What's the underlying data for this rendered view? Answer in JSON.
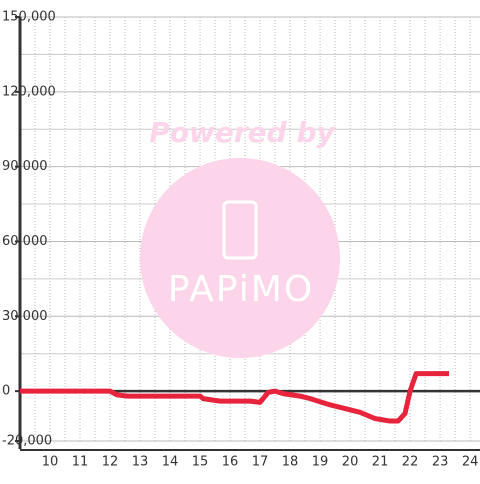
{
  "chart_data": {
    "type": "line",
    "x": [
      9,
      12,
      12.23,
      12.6,
      15,
      15.1,
      15.67,
      16.67,
      17,
      17.27,
      17.5,
      17.77,
      18.33,
      18.67,
      19.33,
      19.83,
      20.33,
      20.83,
      21.33,
      21.6,
      21.83,
      22,
      22.2,
      23.3
    ],
    "series": [
      {
        "color": "#e8243c",
        "values": [
          0,
          0,
          -1500,
          -2000,
          -2000,
          -3000,
          -4000,
          -4000,
          -4500,
          -500,
          0,
          -1000,
          -2000,
          -3000,
          -5500,
          -7000,
          -8500,
          -11000,
          -12000,
          -12000,
          -9000,
          0,
          7000,
          7000
        ]
      }
    ],
    "xlim": [
      9,
      24.33
    ],
    "ylim": [
      -20000,
      150000
    ],
    "xticks": [
      10,
      11,
      12,
      13,
      14,
      15,
      16,
      17,
      18,
      19,
      20,
      21,
      22,
      23,
      24
    ],
    "xticks_minor": [
      9.5,
      10.5,
      11.5,
      12.5,
      13.5,
      14.5,
      15.5,
      16.5,
      17.5,
      18.5,
      19.5,
      20.5,
      21.5,
      22.5,
      23.5
    ],
    "yticks": [
      {
        "value": -20000,
        "label": "-20,000"
      },
      0,
      {
        "value": 30000,
        "label": "30,000"
      },
      {
        "value": 60000,
        "label": "60,000"
      },
      {
        "value": 90000,
        "label": "90,000"
      },
      {
        "value": 120000,
        "label": "120,000"
      },
      {
        "value": 150000,
        "label": "150,000"
      }
    ],
    "yticks_minor": [
      15000,
      45000,
      75000,
      105000,
      135000
    ],
    "grid": true
  },
  "watermark": {
    "text": "Powered by",
    "logo": "PAPiMO"
  }
}
